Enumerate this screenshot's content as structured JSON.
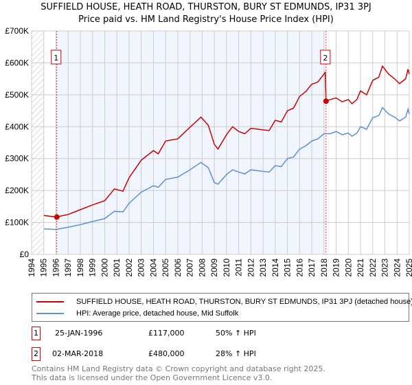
{
  "title": "SUFFIELD HOUSE, HEATH ROAD, THURSTON, BURY ST EDMUNDS, IP31 3PJ",
  "subtitle": "Price paid vs. HM Land Registry's House Price Index (HPI)",
  "chart_data": {
    "type": "line",
    "xlim": [
      1994,
      2025
    ],
    "ylim": [
      0,
      700000
    ],
    "x_ticks": [
      "1994",
      "1995",
      "1996",
      "1997",
      "1998",
      "1999",
      "2000",
      "2001",
      "2002",
      "2003",
      "2004",
      "2005",
      "2006",
      "2007",
      "2008",
      "2009",
      "2010",
      "2011",
      "2012",
      "2013",
      "2014",
      "2015",
      "2016",
      "2017",
      "2018",
      "2019",
      "2020",
      "2021",
      "2022",
      "2023",
      "2024",
      "2025"
    ],
    "y_ticks": [
      {
        "v": 0,
        "label": "£0"
      },
      {
        "v": 100000,
        "label": "£100K"
      },
      {
        "v": 200000,
        "label": "£200K"
      },
      {
        "v": 300000,
        "label": "£300K"
      },
      {
        "v": 400000,
        "label": "£400K"
      },
      {
        "v": 500000,
        "label": "£500K"
      },
      {
        "v": 600000,
        "label": "£600K"
      },
      {
        "v": 700000,
        "label": "£700K"
      }
    ],
    "series": [
      {
        "name": "SUFFIELD HOUSE, HEATH ROAD, THURSTON, BURY ST EDMUNDS, IP31 3PJ (detached house)",
        "color": "#cc0000",
        "x": [
          1995,
          1996,
          1997,
          1998,
          1999,
          2000,
          2000.8,
          2001.5,
          2002,
          2003,
          2004,
          2004.4,
          2005,
          2006,
          2007,
          2007.9,
          2008.5,
          2009,
          2009.3,
          2010,
          2010.5,
          2011,
          2011.5,
          2012,
          2013,
          2013.5,
          2014,
          2014.5,
          2015,
          2015.5,
          2016,
          2016.5,
          2017,
          2017.5,
          2018.1,
          2018.17,
          2018.5,
          2019,
          2019.5,
          2020,
          2020.3,
          2020.7,
          2021,
          2021.5,
          2022,
          2022.5,
          2022.8,
          2023.3,
          2023.8,
          2024.2,
          2024.7,
          2024.9,
          2025
        ],
        "y": [
          122000,
          117000,
          125000,
          140000,
          155000,
          168000,
          205000,
          198000,
          240000,
          295000,
          325000,
          315000,
          355000,
          362000,
          398000,
          430000,
          405000,
          345000,
          330000,
          375000,
          400000,
          385000,
          378000,
          395000,
          390000,
          388000,
          420000,
          415000,
          450000,
          458000,
          495000,
          510000,
          533000,
          540000,
          570000,
          480000,
          485000,
          490000,
          478000,
          485000,
          472000,
          485000,
          512000,
          500000,
          545000,
          555000,
          590000,
          565000,
          550000,
          535000,
          550000,
          580000,
          565000
        ]
      },
      {
        "name": "HPI: Average price, detached house, Mid Suffolk",
        "color": "#5b8fd6",
        "x": [
          1995,
          1996,
          1997,
          1998,
          1999,
          2000,
          2000.8,
          2001.5,
          2002,
          2003,
          2004,
          2004.4,
          2005,
          2006,
          2007,
          2007.9,
          2008.5,
          2009,
          2009.3,
          2010,
          2010.5,
          2011,
          2011.5,
          2012,
          2013,
          2013.5,
          2014,
          2014.5,
          2015,
          2015.5,
          2016,
          2016.5,
          2017,
          2017.5,
          2018,
          2018.5,
          2019,
          2019.5,
          2020,
          2020.3,
          2020.7,
          2021,
          2021.5,
          2022,
          2022.5,
          2022.8,
          2023.3,
          2023.8,
          2024.2,
          2024.7,
          2024.9,
          2025
        ],
        "y": [
          80000,
          78000,
          85000,
          93000,
          103000,
          112000,
          135000,
          133000,
          160000,
          195000,
          215000,
          210000,
          235000,
          242000,
          265000,
          288000,
          272000,
          225000,
          220000,
          250000,
          265000,
          258000,
          252000,
          265000,
          260000,
          258000,
          278000,
          275000,
          300000,
          305000,
          330000,
          340000,
          355000,
          362000,
          378000,
          378000,
          385000,
          375000,
          380000,
          370000,
          380000,
          400000,
          392000,
          428000,
          435000,
          460000,
          440000,
          430000,
          418000,
          430000,
          455000,
          440000
        ]
      }
    ],
    "sales": [
      {
        "num": "1",
        "x": 1996.07,
        "price": 117000,
        "date": "25-JAN-1996",
        "price_label": "£117,000",
        "hpi": "50% ↑ HPI"
      },
      {
        "num": "2",
        "x": 2018.17,
        "price": 480000,
        "date": "02-MAR-2018",
        "price_label": "£480,000",
        "hpi": "28% ↑ HPI"
      }
    ]
  },
  "footer": [
    "Contains HM Land Registry data © Crown copyright and database right 2025.",
    "This data is licensed under the Open Government Licence v3.0."
  ]
}
